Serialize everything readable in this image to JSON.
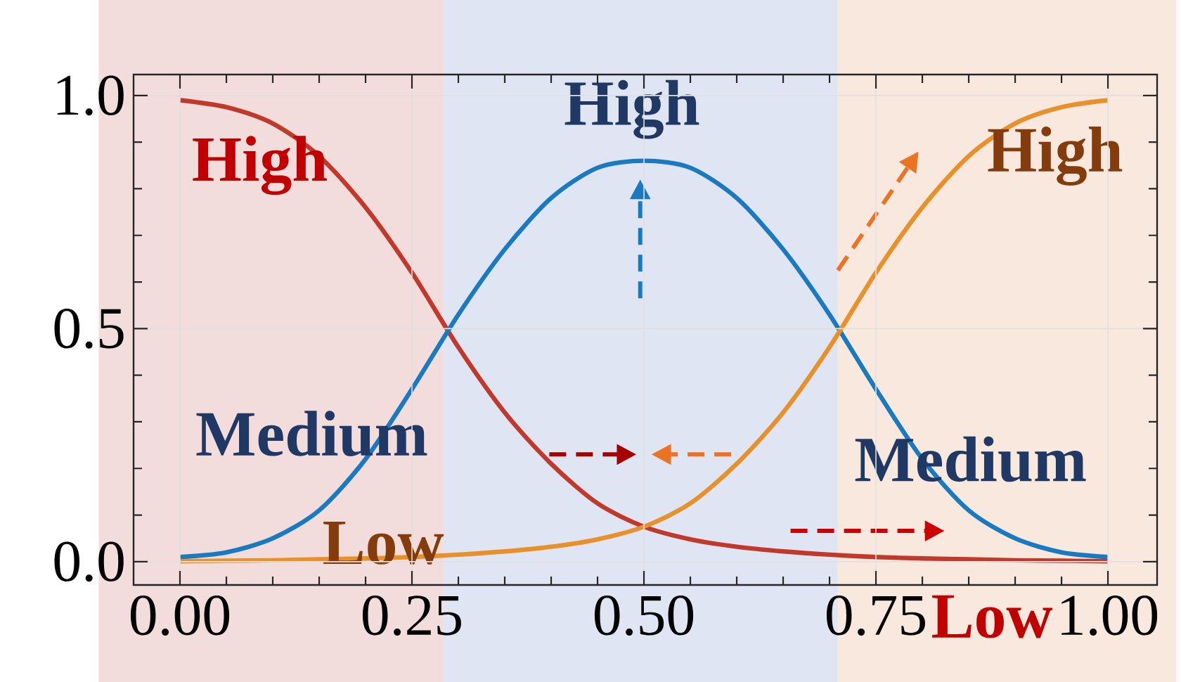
{
  "chart_data": {
    "type": "line",
    "x": [
      0,
      0.05,
      0.1,
      0.15,
      0.2,
      0.25,
      0.3,
      0.35,
      0.4,
      0.45,
      0.5,
      0.55,
      0.6,
      0.65,
      0.7,
      0.75,
      0.8,
      0.85,
      0.9,
      0.95,
      1.0
    ],
    "series": [
      {
        "color": "#c0392b",
        "values": [
          0.99,
          0.975,
          0.94,
          0.87,
          0.76,
          0.62,
          0.46,
          0.32,
          0.21,
          0.125,
          0.075,
          0.048,
          0.032,
          0.022,
          0.015,
          0.01,
          0.007,
          0.005,
          0.003,
          0.002,
          0.001
        ]
      },
      {
        "color": "#1a7abf",
        "values": [
          0.01,
          0.02,
          0.05,
          0.11,
          0.22,
          0.37,
          0.53,
          0.67,
          0.78,
          0.845,
          0.86,
          0.845,
          0.78,
          0.67,
          0.53,
          0.37,
          0.22,
          0.11,
          0.05,
          0.02,
          0.01
        ]
      },
      {
        "color": "#e8902a",
        "values": [
          0.001,
          0.002,
          0.003,
          0.005,
          0.007,
          0.01,
          0.015,
          0.022,
          0.032,
          0.048,
          0.075,
          0.125,
          0.21,
          0.32,
          0.46,
          0.62,
          0.76,
          0.87,
          0.94,
          0.975,
          0.99
        ]
      }
    ],
    "xlim": [
      -0.05,
      1.053
    ],
    "ylim": [
      -0.05,
      1.045
    ],
    "xticks": [
      {
        "value": 0,
        "label": "0.00"
      },
      {
        "value": 0.25,
        "label": "0.25"
      },
      {
        "value": 0.5,
        "label": "0.50"
      },
      {
        "value": 0.75,
        "label": "0.75"
      },
      {
        "value": 1.0,
        "label": "1.00"
      }
    ],
    "yticks": [
      {
        "value": 0,
        "label": "0.0"
      },
      {
        "value": 0.5,
        "label": "0.5"
      },
      {
        "value": 1.0,
        "label": "1.0"
      }
    ],
    "grid": true,
    "marker": "none",
    "line_style": "solid",
    "bands": [
      {
        "axis": "x",
        "from": -0.0875,
        "to": 0.284,
        "color": "#f3dcdc"
      },
      {
        "axis": "x",
        "from": 0.284,
        "to": 0.709,
        "color": "#dfe5f2"
      },
      {
        "axis": "x",
        "from": 0.709,
        "to": 1.074,
        "color": "#f9e8dd"
      }
    ],
    "annotations": [
      "High",
      "High",
      "High",
      "Medium",
      "Medium",
      "Low",
      "Low"
    ]
  }
}
